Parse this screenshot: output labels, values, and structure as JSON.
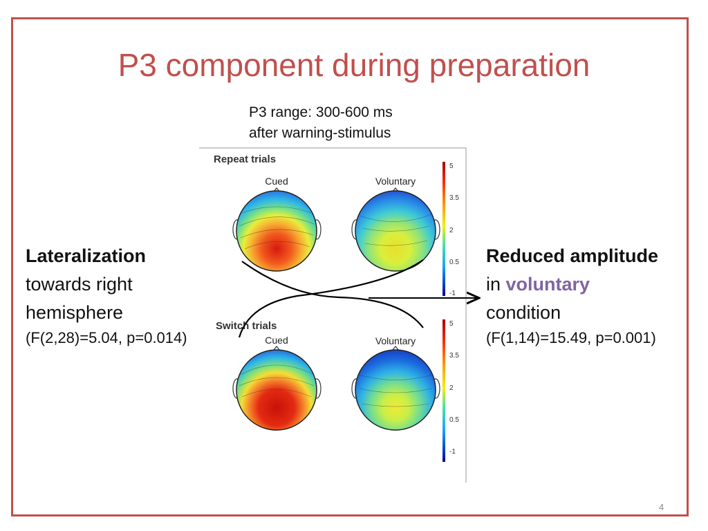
{
  "slide": {
    "title": "P3 component during preparation",
    "range_note_line1": "P3 range: 300-600 ms",
    "range_note_line2": "after warning-stimulus",
    "page_number": "4"
  },
  "left": {
    "heading": "Lateralization",
    "line2": "towards right",
    "line3": "hemisphere",
    "stat": "(F(2,28)=5.04, p=0.014)"
  },
  "right": {
    "heading": "Reduced amplitude",
    "line2_prefix": "in ",
    "line2_accent": "voluntary",
    "line3": "condition",
    "stat": "(F(1,14)=15.49, p=0.001)"
  },
  "figure": {
    "panels": [
      {
        "label": "Repeat trials",
        "conditions": [
          "Cued",
          "Voluntary"
        ]
      },
      {
        "label": "Switch trials",
        "conditions": [
          "Cued",
          "Voluntary"
        ]
      }
    ],
    "colorbar_ticks": [
      "5",
      "3.5",
      "2",
      "0.5",
      "-1"
    ]
  },
  "colors": {
    "accent_red": "#c0504d",
    "accent_purple": "#8064a2"
  }
}
